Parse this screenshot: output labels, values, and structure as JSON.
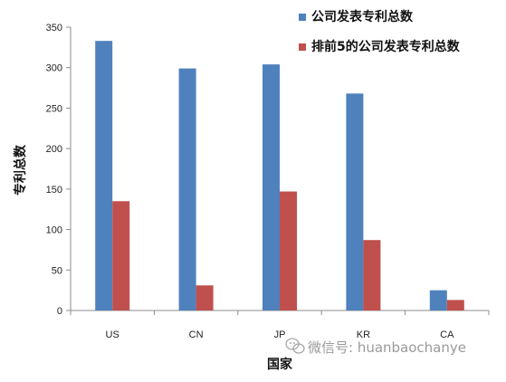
{
  "chart_data": {
    "type": "bar",
    "categories": [
      "US",
      "CN",
      "JP",
      "KR",
      "CA"
    ],
    "series": [
      {
        "name": "公司发表专利总数",
        "color": "#4f81bd",
        "values": [
          333,
          299,
          304,
          268,
          25
        ]
      },
      {
        "name": "排前5的公司发表专利总数",
        "color": "#c0504d",
        "values": [
          135,
          31,
          147,
          87,
          13
        ]
      }
    ],
    "xlabel": "国家",
    "ylabel": "专利总数",
    "ylim": [
      0,
      350
    ],
    "yticks": [
      0,
      50,
      100,
      150,
      200,
      250,
      300,
      350
    ],
    "grid": false,
    "legend_position": "top-right"
  },
  "watermark": {
    "icon": "wechat-icon",
    "text": "微信号: huanbaochanye"
  }
}
